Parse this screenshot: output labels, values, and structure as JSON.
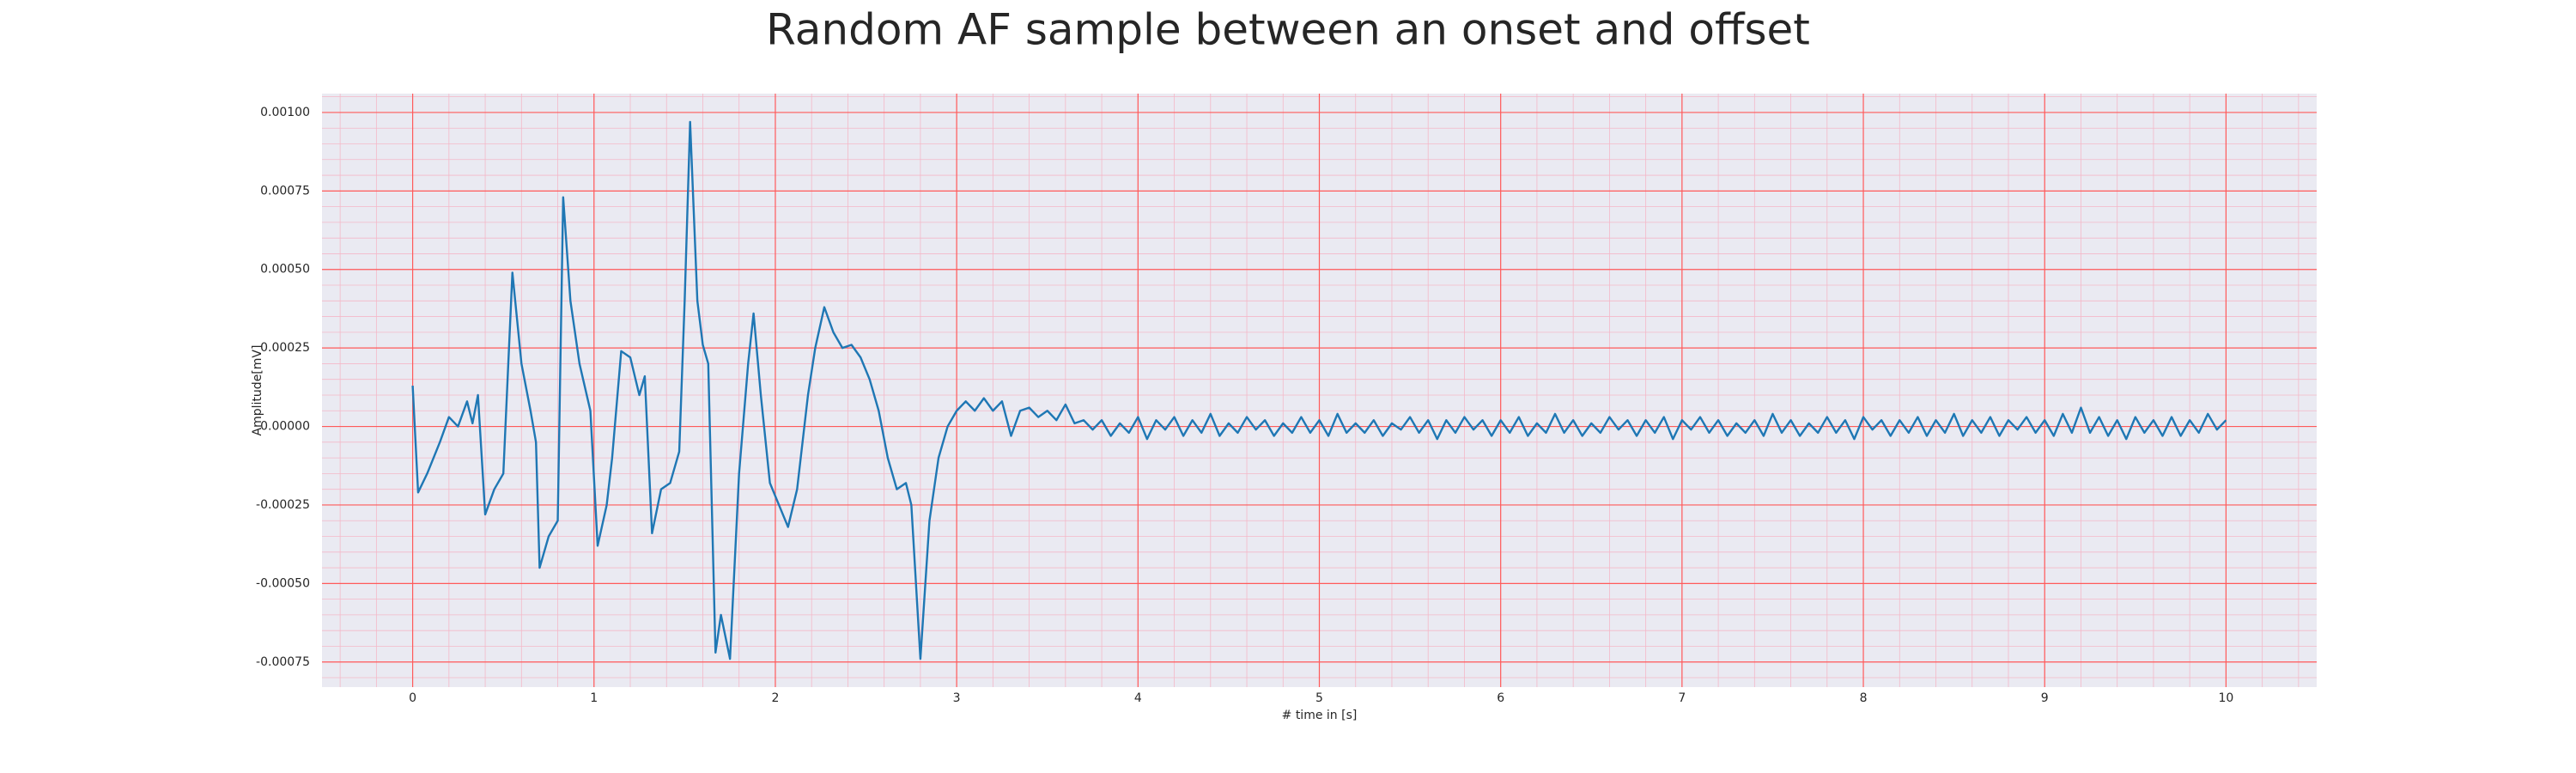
{
  "chart_data": {
    "type": "line",
    "title": "Random AF sample between an onset and offset",
    "xlabel": "# time in [s]",
    "ylabel": "Amplitude[mV]",
    "color": "#1f77b4",
    "grid": true,
    "minor_grid": true,
    "xlim": [
      -0.5,
      10.5
    ],
    "ylim": [
      -0.00083,
      0.00106
    ],
    "xticks": [
      0,
      1,
      2,
      3,
      4,
      5,
      6,
      7,
      8,
      9,
      10
    ],
    "yticks": [
      {
        "value": -0.00075,
        "label": "-0.00075"
      },
      {
        "value": -0.0005,
        "label": "-0.00050"
      },
      {
        "value": -0.00025,
        "label": "-0.00025"
      },
      {
        "value": 0,
        "label": "0.00000"
      },
      {
        "value": 0.00025,
        "label": "0.00025"
      },
      {
        "value": 0.0005,
        "label": "0.00050"
      },
      {
        "value": 0.00075,
        "label": "0.00075"
      },
      {
        "value": 0.001,
        "label": "0.00100"
      }
    ],
    "x": [
      0,
      0.03,
      0.08,
      0.15,
      0.2,
      0.25,
      0.3,
      0.33,
      0.36,
      0.4,
      0.45,
      0.5,
      0.55,
      0.6,
      0.65,
      0.68,
      0.7,
      0.75,
      0.8,
      0.83,
      0.87,
      0.92,
      0.98,
      1.02,
      1.07,
      1.1,
      1.15,
      1.2,
      1.25,
      1.28,
      1.32,
      1.37,
      1.42,
      1.47,
      1.5,
      1.53,
      1.57,
      1.6,
      1.63,
      1.67,
      1.7,
      1.75,
      1.8,
      1.85,
      1.88,
      1.92,
      1.97,
      2.02,
      2.07,
      2.12,
      2.18,
      2.22,
      2.27,
      2.32,
      2.37,
      2.42,
      2.47,
      2.52,
      2.57,
      2.62,
      2.67,
      2.72,
      2.75,
      2.8,
      2.85,
      2.9,
      2.95,
      3,
      3.05,
      3.1,
      3.15,
      3.2,
      3.25,
      3.3,
      3.35,
      3.4,
      3.45,
      3.5,
      3.55,
      3.6,
      3.65,
      3.7,
      3.75,
      3.8,
      3.85,
      3.9,
      3.95,
      4,
      4.05,
      4.1,
      4.15,
      4.2,
      4.25,
      4.3,
      4.35,
      4.4,
      4.45,
      4.5,
      4.55,
      4.6,
      4.65,
      4.7,
      4.75,
      4.8,
      4.85,
      4.9,
      4.95,
      5,
      5.05,
      5.1,
      5.15,
      5.2,
      5.25,
      5.3,
      5.35,
      5.4,
      5.45,
      5.5,
      5.55,
      5.6,
      5.65,
      5.7,
      5.75,
      5.8,
      5.85,
      5.9,
      5.95,
      6,
      6.05,
      6.1,
      6.15,
      6.2,
      6.25,
      6.3,
      6.35,
      6.4,
      6.45,
      6.5,
      6.55,
      6.6,
      6.65,
      6.7,
      6.75,
      6.8,
      6.85,
      6.9,
      6.95,
      7,
      7.05,
      7.1,
      7.15,
      7.2,
      7.25,
      7.3,
      7.35,
      7.4,
      7.45,
      7.5,
      7.55,
      7.6,
      7.65,
      7.7,
      7.75,
      7.8,
      7.85,
      7.9,
      7.95,
      8,
      8.05,
      8.1,
      8.15,
      8.2,
      8.25,
      8.3,
      8.35,
      8.4,
      8.45,
      8.5,
      8.55,
      8.6,
      8.65,
      8.7,
      8.75,
      8.8,
      8.85,
      8.9,
      8.95,
      9,
      9.05,
      9.1,
      9.15,
      9.2,
      9.25,
      9.3,
      9.35,
      9.4,
      9.45,
      9.5,
      9.55,
      9.6,
      9.65,
      9.7,
      9.75,
      9.8,
      9.85,
      9.9,
      9.95,
      10
    ],
    "values": [
      0.00013,
      -0.00021,
      -0.00015,
      -5e-05,
      3e-05,
      0,
      8e-05,
      1e-05,
      0.0001,
      -0.00028,
      -0.0002,
      -0.00015,
      0.00049,
      0.0002,
      5e-05,
      -5e-05,
      -0.00045,
      -0.00035,
      -0.0003,
      0.00073,
      0.0004,
      0.0002,
      5e-05,
      -0.00038,
      -0.00025,
      -0.0001,
      0.00024,
      0.00022,
      0.0001,
      0.00016,
      -0.00034,
      -0.0002,
      -0.00018,
      -8e-05,
      0.0004,
      0.00097,
      0.0004,
      0.00026,
      0.0002,
      -0.00072,
      -0.0006,
      -0.00074,
      -0.00015,
      0.0002,
      0.00036,
      0.0001,
      -0.00018,
      -0.00025,
      -0.00032,
      -0.0002,
      0.0001,
      0.00025,
      0.00038,
      0.0003,
      0.00025,
      0.00026,
      0.00022,
      0.00015,
      5e-05,
      -0.0001,
      -0.0002,
      -0.00018,
      -0.00025,
      -0.00074,
      -0.0003,
      -0.0001,
      0,
      5e-05,
      8e-05,
      5e-05,
      9e-05,
      5e-05,
      8e-05,
      -3e-05,
      5e-05,
      6e-05,
      3e-05,
      5e-05,
      2e-05,
      7e-05,
      1e-05,
      2e-05,
      -1e-05,
      2e-05,
      -3e-05,
      1e-05,
      -2e-05,
      3e-05,
      -4e-05,
      2e-05,
      -1e-05,
      3e-05,
      -3e-05,
      2e-05,
      -2e-05,
      4e-05,
      -3e-05,
      1e-05,
      -2e-05,
      3e-05,
      -1e-05,
      2e-05,
      -3e-05,
      1e-05,
      -2e-05,
      3e-05,
      -2e-05,
      2e-05,
      -3e-05,
      4e-05,
      -2e-05,
      1e-05,
      -2e-05,
      2e-05,
      -3e-05,
      1e-05,
      -1e-05,
      3e-05,
      -2e-05,
      2e-05,
      -4e-05,
      2e-05,
      -2e-05,
      3e-05,
      -1e-05,
      2e-05,
      -3e-05,
      2e-05,
      -2e-05,
      3e-05,
      -3e-05,
      1e-05,
      -2e-05,
      4e-05,
      -2e-05,
      2e-05,
      -3e-05,
      1e-05,
      -2e-05,
      3e-05,
      -1e-05,
      2e-05,
      -3e-05,
      2e-05,
      -2e-05,
      3e-05,
      -4e-05,
      2e-05,
      -1e-05,
      3e-05,
      -2e-05,
      2e-05,
      -3e-05,
      1e-05,
      -2e-05,
      2e-05,
      -3e-05,
      4e-05,
      -2e-05,
      2e-05,
      -3e-05,
      1e-05,
      -2e-05,
      3e-05,
      -2e-05,
      2e-05,
      -4e-05,
      3e-05,
      -1e-05,
      2e-05,
      -3e-05,
      2e-05,
      -2e-05,
      3e-05,
      -3e-05,
      2e-05,
      -2e-05,
      4e-05,
      -3e-05,
      2e-05,
      -2e-05,
      3e-05,
      -3e-05,
      2e-05,
      -1e-05,
      3e-05,
      -2e-05,
      2e-05,
      -3e-05,
      4e-05,
      -2e-05,
      6e-05,
      -2e-05,
      3e-05,
      -3e-05,
      2e-05,
      -4e-05,
      3e-05,
      -2e-05,
      2e-05,
      -3e-05,
      3e-05,
      -3e-05,
      2e-05,
      -2e-05,
      4e-05,
      -1e-05,
      2e-05
    ]
  }
}
